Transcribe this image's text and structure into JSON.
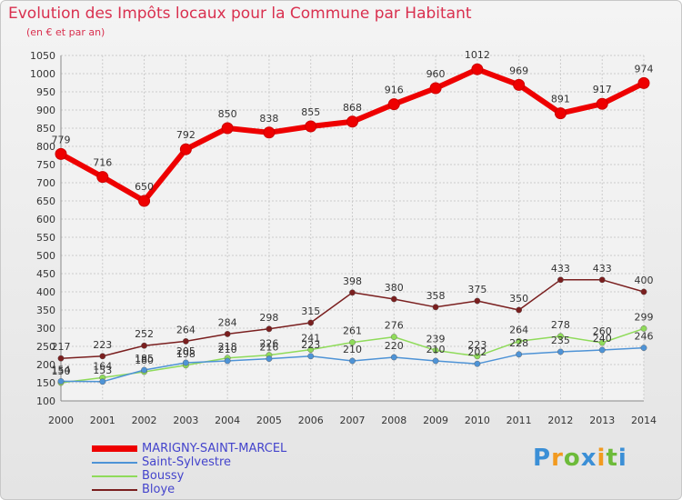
{
  "title": "Evolution des Impôts locaux pour la Commune par Habitant",
  "subtitle": "(en € et par an)",
  "logo": "Proxiti",
  "colors": {
    "title": "#d9304f",
    "legend_text": "#4444cc",
    "grid": "#cccccc"
  },
  "chart_data": {
    "type": "line",
    "x": [
      2000,
      2001,
      2002,
      2003,
      2004,
      2005,
      2006,
      2007,
      2008,
      2009,
      2010,
      2011,
      2012,
      2013,
      2014
    ],
    "ylim": [
      100,
      1050
    ],
    "yticks": [
      100,
      150,
      200,
      250,
      300,
      350,
      400,
      450,
      500,
      550,
      600,
      650,
      700,
      750,
      800,
      850,
      900,
      950,
      1000,
      1050
    ],
    "grid": true,
    "legend_position": "bottom-left",
    "series": [
      {
        "name": "MARIGNY-SAINT-MARCEL",
        "color": "#ee0000",
        "values": [
          779,
          716,
          650,
          792,
          850,
          838,
          855,
          868,
          916,
          960,
          1012,
          969,
          891,
          917,
          974
        ]
      },
      {
        "name": "Saint-Sylvestre",
        "color": "#4e93d6",
        "values": [
          154,
          153,
          185,
          205,
          210,
          216,
          223,
          210,
          220,
          210,
          202,
          228,
          235,
          240,
          246
        ]
      },
      {
        "name": "Boussy",
        "color": "#8fdb5a",
        "values": [
          150,
          164,
          180,
          198,
          218,
          226,
          241,
          261,
          276,
          239,
          223,
          264,
          278,
          260,
          299
        ]
      },
      {
        "name": "Bloye",
        "color": "#7a1f1f",
        "values": [
          217,
          223,
          252,
          264,
          284,
          298,
          315,
          398,
          380,
          358,
          375,
          350,
          433,
          433,
          400
        ]
      }
    ]
  }
}
